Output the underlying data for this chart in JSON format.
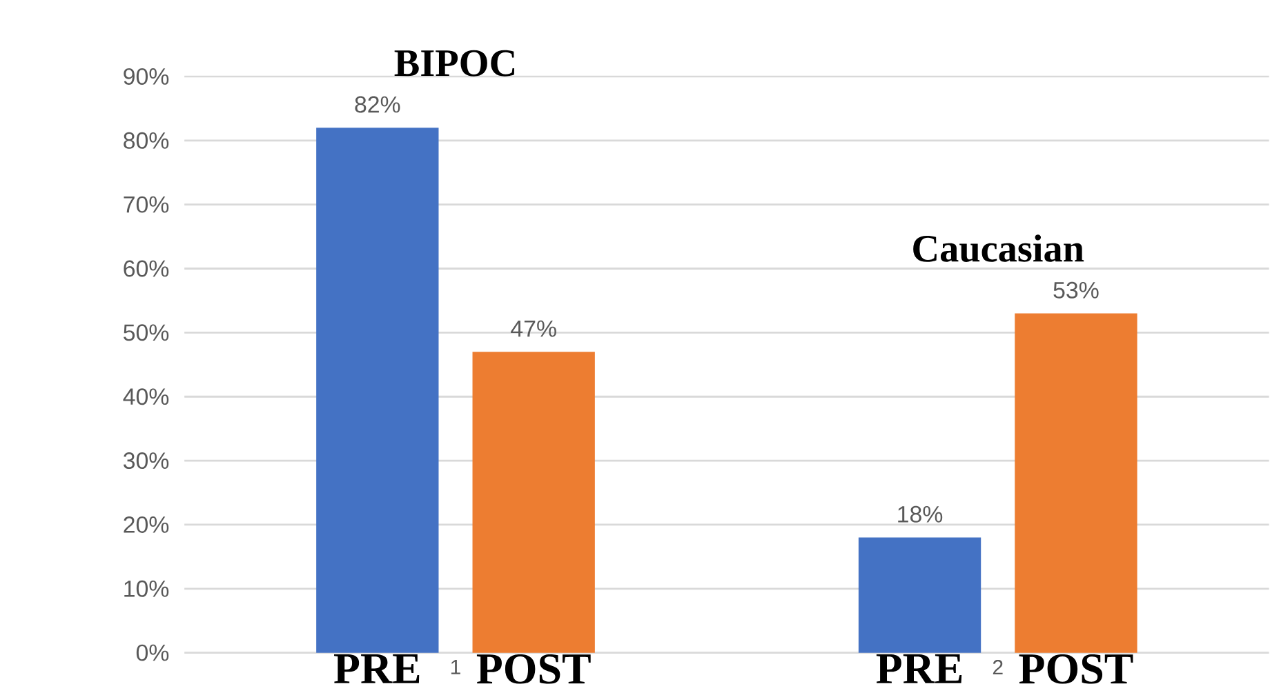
{
  "chart_data": {
    "type": "bar",
    "categories": [
      "1",
      "2"
    ],
    "series": [
      {
        "name": "PRE",
        "color": "#4472c4",
        "values": [
          82,
          18
        ],
        "value_labels": [
          "82%",
          "18%"
        ]
      },
      {
        "name": "POST",
        "color": "#ed7d31",
        "values": [
          47,
          53
        ],
        "value_labels": [
          "47%",
          "53%"
        ]
      }
    ],
    "ylim": [
      0,
      90
    ],
    "yticks": [
      {
        "value": 0,
        "label": "0%"
      },
      {
        "value": 10,
        "label": "10%"
      },
      {
        "value": 20,
        "label": "20%"
      },
      {
        "value": 30,
        "label": "30%"
      },
      {
        "value": 40,
        "label": "40%"
      },
      {
        "value": 50,
        "label": "50%"
      },
      {
        "value": 60,
        "label": "60%"
      },
      {
        "value": 70,
        "label": "70%"
      },
      {
        "value": 80,
        "label": "80%"
      },
      {
        "value": 90,
        "label": "90%"
      }
    ],
    "grid": "y",
    "legend": false,
    "annotations": [
      "BIPOC",
      "Caucasian"
    ]
  }
}
